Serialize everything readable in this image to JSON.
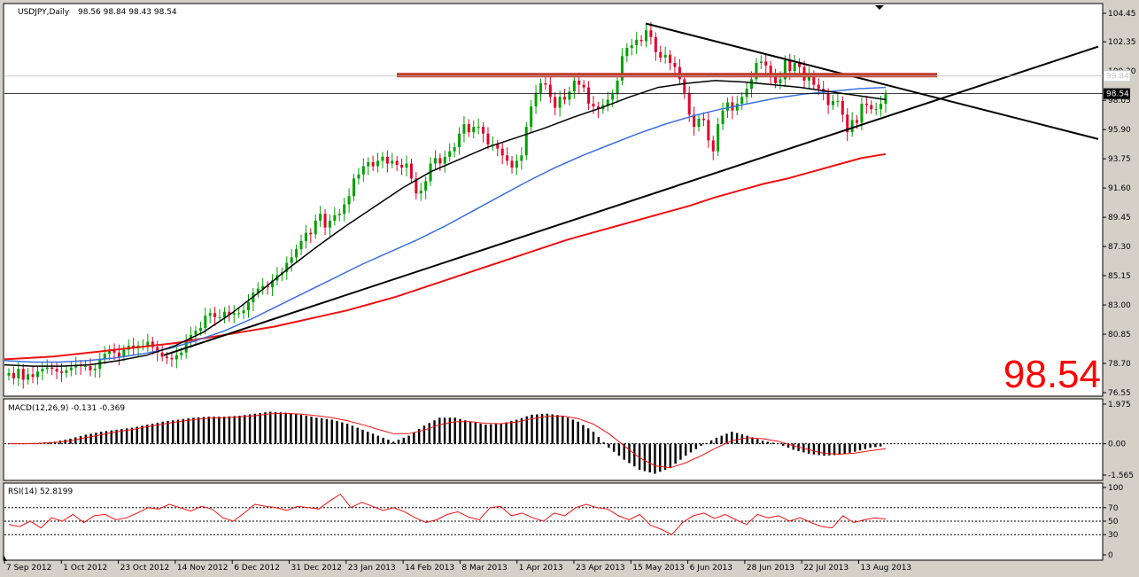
{
  "chart_data": {
    "type": "candlestick",
    "symbol": "USDJPY,Daily",
    "ohlc_text": "98.56 98.84 98.43 98.54",
    "last_price": "98.54",
    "big_price": "98.54",
    "level_line_value": "99.84",
    "price_axis": {
      "ylim": [
        76.55,
        104.45
      ],
      "ticks": [
        "104.45",
        "102.35",
        "100.20",
        "98.05",
        "95.90",
        "93.75",
        "91.60",
        "89.45",
        "87.30",
        "85.15",
        "83.00",
        "80.85",
        "78.70",
        "76.55"
      ]
    },
    "x_labels": [
      "7 Sep 2012",
      "1 Oct 2012",
      "23 Oct 2012",
      "14 Nov 2012",
      "6 Dec 2012",
      "31 Dec 2012",
      "23 Jan 2013",
      "14 Feb 2013",
      "8 Mar 2013",
      "1 Apr 2013",
      "23 Apr 2013",
      "15 May 2013",
      "6 Jun 2013",
      "28 Jun 2013",
      "22 Jul 2013",
      "13 Aug 2013"
    ],
    "close_series": [
      78.0,
      77.6,
      78.3,
      77.5,
      77.9,
      77.7,
      78.1,
      78.3,
      78.4,
      78.3,
      78.1,
      78.0,
      78.2,
      78.4,
      78.6,
      78.5,
      78.5,
      78.2,
      78.3,
      79.0,
      79.4,
      79.7,
      79.5,
      79.2,
      79.7,
      80.0,
      79.8,
      80.0,
      80.0,
      80.3,
      79.9,
      79.5,
      79.2,
      79.1,
      79.0,
      79.3,
      79.5,
      80.4,
      80.8,
      81.1,
      81.3,
      82.2,
      82.4,
      82.1,
      82.1,
      82.5,
      82.3,
      82.4,
      82.4,
      82.6,
      83.2,
      83.9,
      84.2,
      84.4,
      84.3,
      84.8,
      85.2,
      85.4,
      86.1,
      86.5,
      87.1,
      87.7,
      88.3,
      88.2,
      89.2,
      89.7,
      88.7,
      89.2,
      89.6,
      89.7,
      90.4,
      91.0,
      92.3,
      92.6,
      93.2,
      93.5,
      93.2,
      93.6,
      93.9,
      93.4,
      93.6,
      93.3,
      93.1,
      93.4,
      92.3,
      91.2,
      91.4,
      92.1,
      93.4,
      93.8,
      93.4,
      93.9,
      94.3,
      94.6,
      95.6,
      96.3,
      95.7,
      96.1,
      96.1,
      95.6,
      94.8,
      94.8,
      94.5,
      94.0,
      93.6,
      93.1,
      93.6,
      94.0,
      96.1,
      97.6,
      98.6,
      99.3,
      99.2,
      98.3,
      97.5,
      98.3,
      98.1,
      98.7,
      99.5,
      99.2,
      99.0,
      97.8,
      97.6,
      97.4,
      97.7,
      98.1,
      98.5,
      99.5,
      101.3,
      101.9,
      102.1,
      102.5,
      102.4,
      103.2,
      102.7,
      101.6,
      101.2,
      101.4,
      100.8,
      100.5,
      99.6,
      98.6,
      97.0,
      96.1,
      96.7,
      96.6,
      95.1,
      94.3,
      96.3,
      97.3,
      97.9,
      97.3,
      97.8,
      98.3,
      98.9,
      99.6,
      100.8,
      100.9,
      100.6,
      99.9,
      99.3,
      99.6,
      101.0,
      100.2,
      100.8,
      100.5,
      99.5,
      99.9,
      99.2,
      98.9,
      98.6,
      97.7,
      98.0,
      98.0,
      97.0,
      95.7,
      96.6,
      96.4,
      97.8,
      97.7,
      97.4,
      97.4,
      97.8,
      98.5
    ],
    "ma200": [
      79.0,
      79.1,
      79.2,
      79.4,
      79.6,
      79.8,
      80.0,
      80.2,
      80.5,
      80.8,
      81.1,
      81.4,
      81.8,
      82.2,
      82.6,
      83.1,
      83.6,
      84.2,
      84.8,
      85.4,
      86.0,
      86.6,
      87.2,
      87.8,
      88.3,
      88.8,
      89.3,
      89.8,
      90.3,
      90.9,
      91.4,
      91.9,
      92.3,
      92.8,
      93.3,
      93.8,
      94.1
    ],
    "ma100": [
      78.9,
      78.8,
      78.8,
      78.9,
      79.1,
      79.4,
      79.8,
      80.4,
      81.1,
      82.0,
      83.0,
      84.0,
      85.0,
      86.0,
      86.9,
      87.8,
      88.8,
      89.9,
      91.0,
      92.1,
      93.1,
      94.0,
      94.8,
      95.6,
      96.3,
      96.9,
      97.4,
      97.8,
      98.2,
      98.5,
      98.7,
      98.9,
      99.0
    ],
    "ma50": [
      78.6,
      78.5,
      78.5,
      78.6,
      78.9,
      79.3,
      80.0,
      81.0,
      82.4,
      84.0,
      85.7,
      87.3,
      88.8,
      90.2,
      91.6,
      92.8,
      93.7,
      94.6,
      95.3,
      96.0,
      96.8,
      97.5,
      98.3,
      99.0,
      99.3,
      99.5,
      99.4,
      99.2,
      99.0,
      98.7,
      98.4,
      98.1
    ],
    "macd_label": "MACD(12,26,9) -0.131 -0.369",
    "macd_axis_ticks": [
      "1.975",
      "0.00",
      "-1.565"
    ],
    "macd_hist": [
      0.0,
      0.0,
      0.05,
      0.1,
      0.25,
      0.45,
      0.6,
      0.7,
      0.8,
      0.95,
      1.1,
      1.2,
      1.3,
      1.35,
      1.35,
      1.4,
      1.5,
      1.6,
      1.55,
      1.45,
      1.3,
      1.2,
      1.0,
      0.7,
      0.4,
      0.1,
      0.4,
      0.9,
      1.3,
      1.3,
      1.1,
      0.95,
      1.0,
      1.2,
      1.45,
      1.5,
      1.4,
      1.1,
      0.6,
      -0.2,
      -0.8,
      -1.3,
      -1.5,
      -1.2,
      -0.6,
      -0.1,
      0.3,
      0.6,
      0.4,
      0.15,
      0.0,
      -0.3,
      -0.5,
      -0.6,
      -0.55,
      -0.4,
      -0.2,
      -0.1
    ],
    "macd_signal": [
      0.0,
      0.0,
      0.02,
      0.06,
      0.15,
      0.3,
      0.45,
      0.6,
      0.7,
      0.85,
      0.98,
      1.1,
      1.2,
      1.28,
      1.3,
      1.34,
      1.4,
      1.5,
      1.52,
      1.48,
      1.4,
      1.3,
      1.15,
      0.95,
      0.72,
      0.5,
      0.5,
      0.68,
      0.95,
      1.1,
      1.1,
      1.02,
      1.0,
      1.08,
      1.25,
      1.36,
      1.38,
      1.26,
      0.98,
      0.5,
      -0.1,
      -0.7,
      -1.1,
      -1.2,
      -0.95,
      -0.6,
      -0.2,
      0.15,
      0.3,
      0.25,
      0.12,
      -0.1,
      -0.3,
      -0.48,
      -0.52,
      -0.47,
      -0.35,
      -0.25
    ],
    "rsi_label": "RSI(14) 52.8199",
    "rsi_axis_ticks": [
      "100",
      "70",
      "50",
      "30",
      "0"
    ],
    "rsi_values": [
      45,
      42,
      50,
      40,
      55,
      50,
      60,
      48,
      58,
      60,
      52,
      55,
      62,
      70,
      68,
      75,
      70,
      65,
      72,
      68,
      55,
      50,
      62,
      75,
      72,
      70,
      66,
      72,
      70,
      68,
      80,
      90,
      70,
      78,
      72,
      66,
      70,
      64,
      55,
      48,
      52,
      60,
      64,
      56,
      52,
      70,
      72,
      58,
      62,
      55,
      50,
      62,
      58,
      70,
      75,
      70,
      68,
      58,
      52,
      60,
      44,
      38,
      30,
      48,
      58,
      62,
      54,
      60,
      52,
      45,
      60,
      55,
      58,
      50,
      55,
      48,
      42,
      40,
      58,
      48,
      52,
      55,
      53
    ]
  }
}
